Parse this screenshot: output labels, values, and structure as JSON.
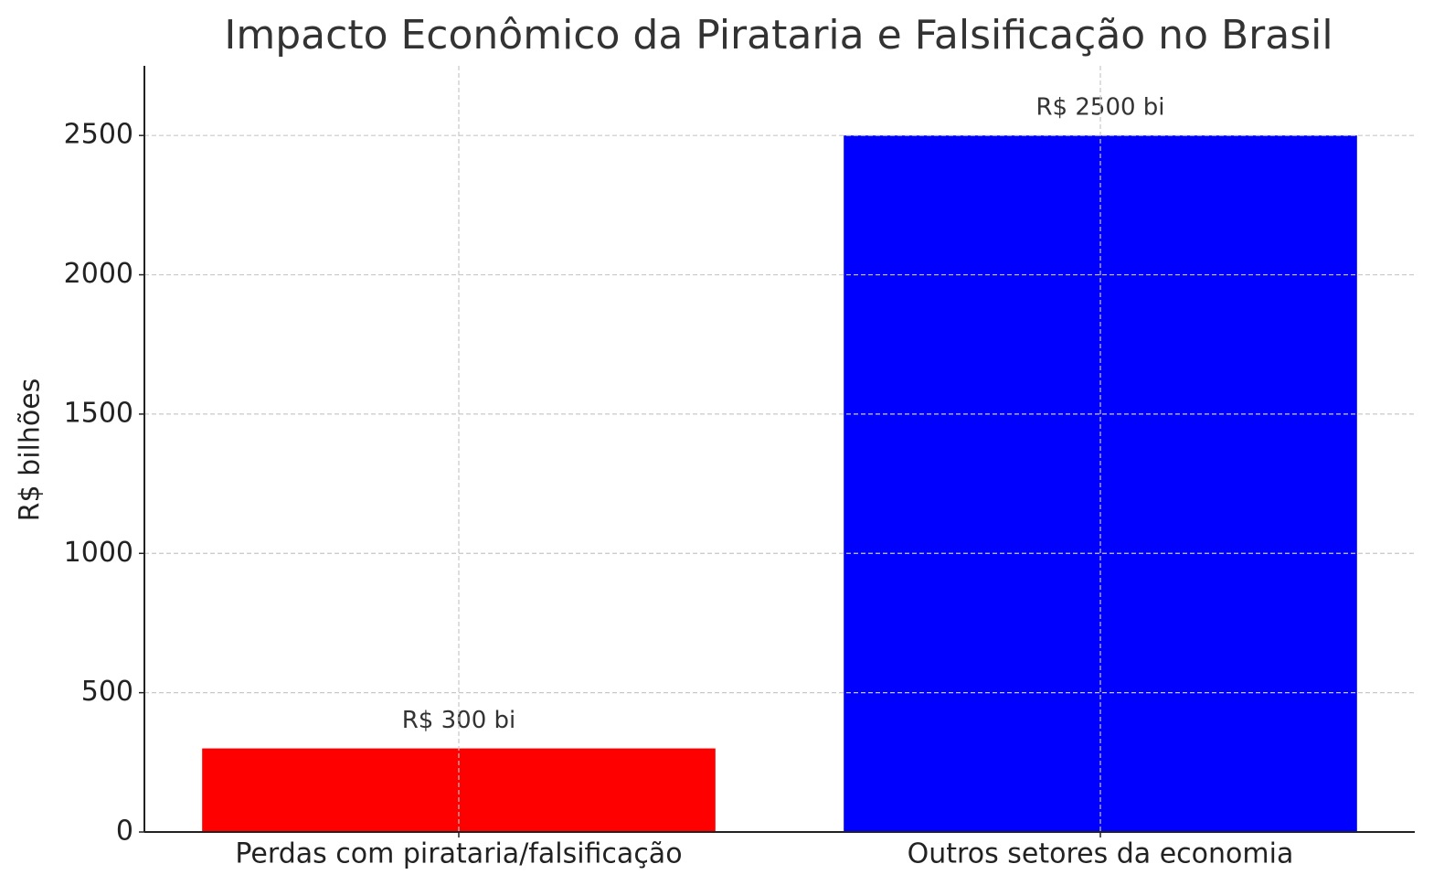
{
  "chart_data": {
    "type": "bar",
    "title": "Impacto Econômico da Pirataria e Falsificação no Brasil",
    "y_label": "R$ bilhões",
    "categories": [
      "Perdas com pirataria/falsificação",
      "Outros setores da economia"
    ],
    "values": [
      300,
      2500
    ],
    "value_labels": [
      "R$ 300 bi",
      "R$ 2500 bi"
    ],
    "colors": [
      "#ff0000",
      "#0000ff"
    ],
    "ylim": [
      0,
      2750
    ],
    "yticks": [
      0,
      500,
      1000,
      1500,
      2000,
      2500
    ],
    "grid": true
  }
}
